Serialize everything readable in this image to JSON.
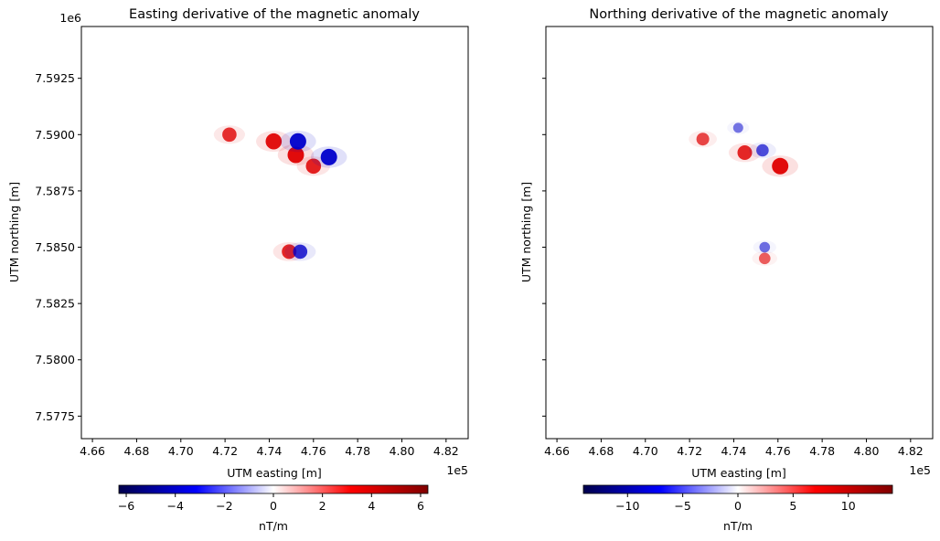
{
  "chart_data": [
    {
      "type": "heatmap",
      "title": "Easting derivative of the magnetic anomaly",
      "xlabel": "UTM easting [m]",
      "ylabel": "UTM northing [m]",
      "x_offset_label": "1e5",
      "y_offset_label": "1e6",
      "xlim": [
        4.655,
        4.83
      ],
      "ylim": [
        7.5765,
        7.5948
      ],
      "xticks": [
        4.66,
        4.68,
        4.7,
        4.72,
        4.74,
        4.76,
        4.78,
        4.8,
        4.82
      ],
      "xtick_labels": [
        "4.66",
        "4.68",
        "4.70",
        "4.72",
        "4.74",
        "4.76",
        "4.78",
        "4.80",
        "4.82"
      ],
      "yticks": [
        7.5775,
        7.58,
        7.5825,
        7.585,
        7.5875,
        7.59,
        7.5925
      ],
      "ytick_labels": [
        "7.5775",
        "7.5800",
        "7.5825",
        "7.5850",
        "7.5875",
        "7.5900",
        "7.5925"
      ],
      "colormap": "seismic",
      "colorbar": {
        "label": "nT/m",
        "vmin": -6.3,
        "vmax": 6.3,
        "ticks": [
          -6,
          -4,
          -2,
          0,
          2,
          4,
          6
        ],
        "tick_labels": [
          "−6",
          "−4",
          "−2",
          "0",
          "2",
          "4",
          "6"
        ]
      },
      "features": [
        {
          "x": 4.722,
          "y": 7.59,
          "sign": 1,
          "strength": 0.75
        },
        {
          "x": 4.742,
          "y": 7.5897,
          "sign": 1,
          "strength": 0.95
        },
        {
          "x": 4.752,
          "y": 7.5891,
          "sign": 1,
          "strength": 1.0
        },
        {
          "x": 4.76,
          "y": 7.5886,
          "sign": 1,
          "strength": 0.85
        },
        {
          "x": 4.753,
          "y": 7.5897,
          "sign": -1,
          "strength": 1.0
        },
        {
          "x": 4.767,
          "y": 7.589,
          "sign": -1,
          "strength": 1.0
        },
        {
          "x": 4.749,
          "y": 7.5848,
          "sign": 1,
          "strength": 0.8
        },
        {
          "x": 4.754,
          "y": 7.5848,
          "sign": -1,
          "strength": 0.75
        }
      ]
    },
    {
      "type": "heatmap",
      "title": "Northing derivative of the magnetic anomaly",
      "xlabel": "UTM easting [m]",
      "ylabel": "UTM northing [m]",
      "x_offset_label": "1e5",
      "xlim": [
        4.655,
        4.83
      ],
      "ylim": [
        7.5765,
        7.5948
      ],
      "xticks": [
        4.66,
        4.68,
        4.7,
        4.72,
        4.74,
        4.76,
        4.78,
        4.8,
        4.82
      ],
      "xtick_labels": [
        "4.66",
        "4.68",
        "4.70",
        "4.72",
        "4.74",
        "4.76",
        "4.78",
        "4.80",
        "4.82"
      ],
      "yticks": [
        7.5775,
        7.58,
        7.5825,
        7.585,
        7.5875,
        7.59,
        7.5925
      ],
      "ytick_labels": [],
      "colormap": "seismic",
      "colorbar": {
        "label": "nT/m",
        "vmin": -14,
        "vmax": 14,
        "ticks": [
          -10,
          -5,
          0,
          5,
          10
        ],
        "tick_labels": [
          "−10",
          "−5",
          "0",
          "5",
          "10"
        ]
      },
      "features": [
        {
          "x": 4.726,
          "y": 7.5898,
          "sign": 1,
          "strength": 0.6
        },
        {
          "x": 4.745,
          "y": 7.5892,
          "sign": 1,
          "strength": 0.8
        },
        {
          "x": 4.761,
          "y": 7.5886,
          "sign": 1,
          "strength": 1.0
        },
        {
          "x": 4.753,
          "y": 7.5893,
          "sign": -1,
          "strength": 0.55
        },
        {
          "x": 4.742,
          "y": 7.5903,
          "sign": -1,
          "strength": 0.3
        },
        {
          "x": 4.754,
          "y": 7.5845,
          "sign": 1,
          "strength": 0.45
        },
        {
          "x": 4.754,
          "y": 7.585,
          "sign": -1,
          "strength": 0.35
        }
      ]
    }
  ]
}
